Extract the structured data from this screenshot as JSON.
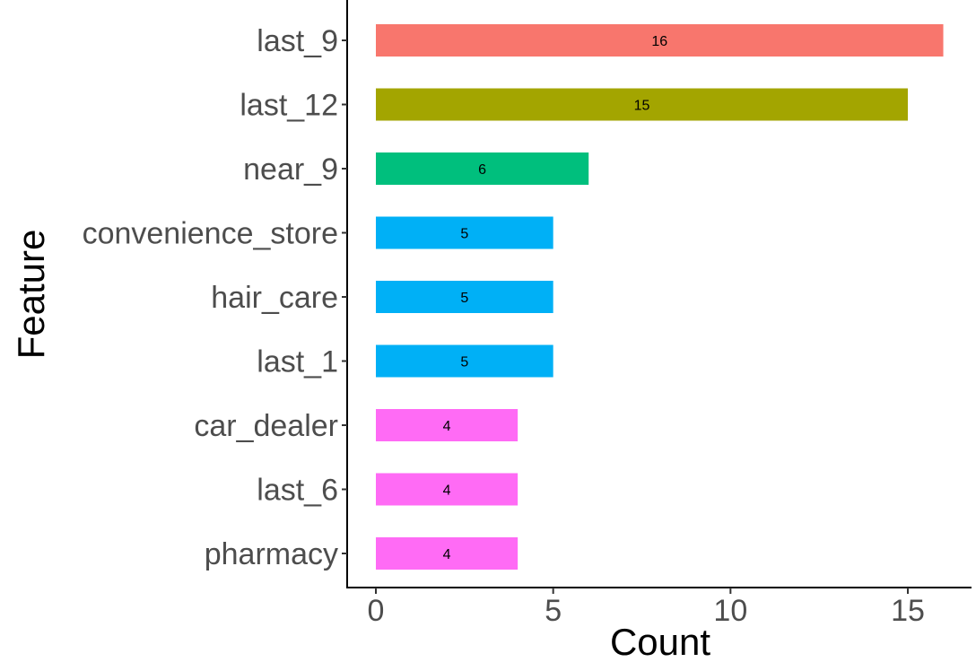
{
  "chart_data": {
    "type": "bar",
    "orientation": "horizontal",
    "xlabel": "Count",
    "ylabel": "Feature",
    "xlim": [
      0,
      16.8
    ],
    "x_ticks": [
      0,
      5,
      10,
      15
    ],
    "grid": false,
    "bars": [
      {
        "category": "last_9",
        "value": 16,
        "label": "16",
        "color": "#F8766D"
      },
      {
        "category": "last_12",
        "value": 15,
        "label": "15",
        "color": "#A3A500"
      },
      {
        "category": "near_9",
        "value": 6,
        "label": "6",
        "color": "#00BF7D"
      },
      {
        "category": "convenience_store",
        "value": 5,
        "label": "5",
        "color": "#00B0F6"
      },
      {
        "category": "hair_care",
        "value": 5,
        "label": "5",
        "color": "#00B0F6"
      },
      {
        "category": "last_1",
        "value": 5,
        "label": "5",
        "color": "#00B0F6"
      },
      {
        "category": "car_dealer",
        "value": 4,
        "label": "4",
        "color": "#FF6BF5"
      },
      {
        "category": "last_6",
        "value": 4,
        "label": "4",
        "color": "#FF6BF5"
      },
      {
        "category": "pharmacy",
        "value": 4,
        "label": "4",
        "color": "#FF6BF5"
      }
    ]
  }
}
